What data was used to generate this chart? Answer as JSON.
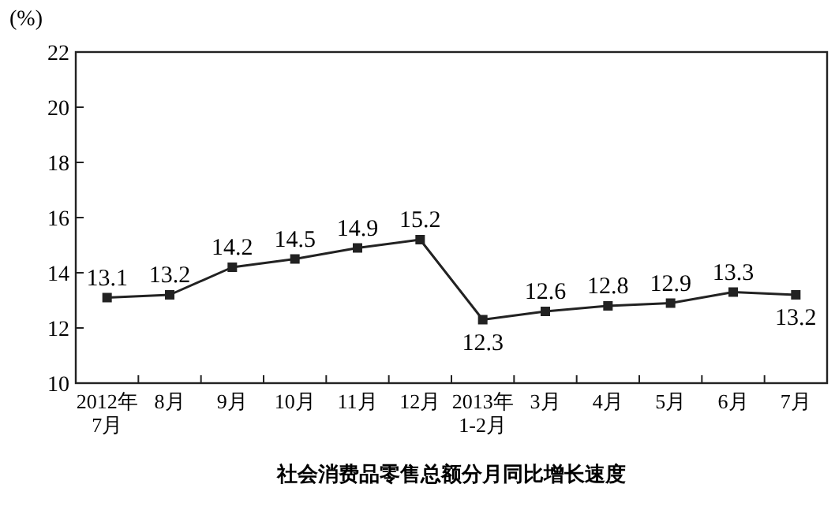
{
  "chart_data": {
    "type": "line",
    "title": "社会消费品零售总额分月同比增长速度",
    "ylabel": "(%)",
    "categories": [
      "2012年\n7月",
      "8月",
      "9月",
      "10月",
      "11月",
      "12月",
      "2013年\n1-2月",
      "3月",
      "4月",
      "5月",
      "6月",
      "7月"
    ],
    "values": [
      13.1,
      13.2,
      14.2,
      14.5,
      14.9,
      15.2,
      12.3,
      12.6,
      12.8,
      12.9,
      13.3,
      13.2
    ],
    "color": "#222222",
    "marker": "square",
    "data_labels": true,
    "ylim": [
      10,
      22
    ],
    "yticks": [
      10,
      12,
      14,
      16,
      18,
      20,
      22
    ]
  }
}
